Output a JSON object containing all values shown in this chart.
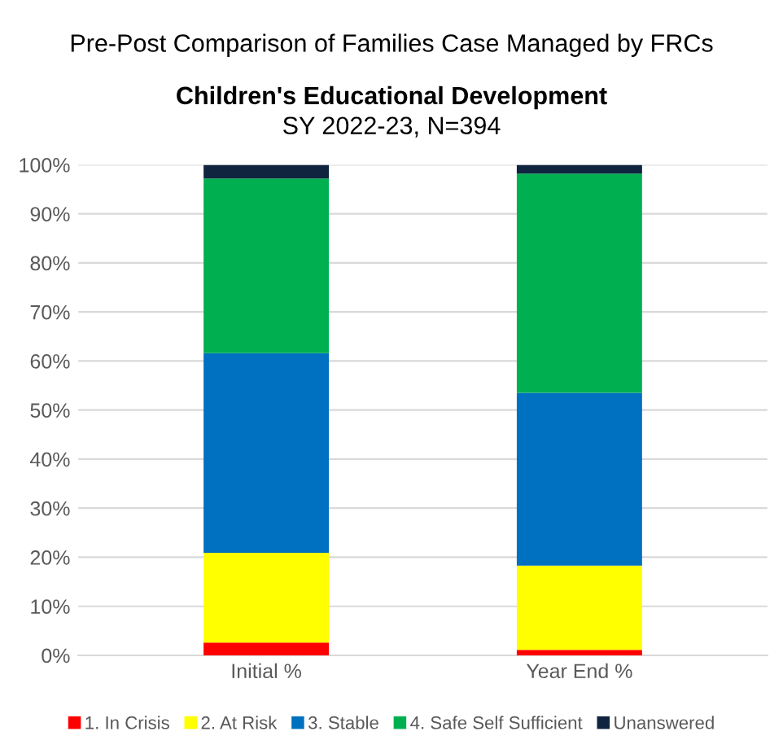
{
  "chart_data": {
    "type": "bar",
    "stacked": true,
    "title": "Pre-Post Comparison of Families Case Managed by FRCs",
    "subtitle": "Children's Educational Development",
    "annotations": [
      "SY 2022-23, N=394"
    ],
    "categories": [
      "Initial %",
      "Year End %"
    ],
    "series": [
      {
        "name": "1. In Crisis",
        "color": "#ff0000",
        "values": [
          2.6,
          1.1
        ]
      },
      {
        "name": "2. At Risk",
        "color": "#ffff00",
        "values": [
          18.3,
          17.2
        ]
      },
      {
        "name": "3. Stable",
        "color": "#0070c0",
        "values": [
          40.7,
          35.2
        ]
      },
      {
        "name": "4. Safe Self Sufficient",
        "color": "#00b050",
        "values": [
          35.6,
          44.7
        ]
      },
      {
        "name": "Unanswered",
        "color": "#10243f",
        "values": [
          2.8,
          1.8
        ]
      }
    ],
    "ylim": [
      0,
      100
    ],
    "yticks": [
      {
        "value": 0,
        "label": "0%"
      },
      {
        "value": 10,
        "label": "10%"
      },
      {
        "value": 20,
        "label": "20%"
      },
      {
        "value": 30,
        "label": "30%"
      },
      {
        "value": 40,
        "label": "40%"
      },
      {
        "value": 50,
        "label": "50%"
      },
      {
        "value": 60,
        "label": "60%"
      },
      {
        "value": 70,
        "label": "70%"
      },
      {
        "value": 80,
        "label": "80%"
      },
      {
        "value": 90,
        "label": "90%"
      },
      {
        "value": 100,
        "label": "100%"
      }
    ],
    "grid": "y",
    "legend": "bottom"
  }
}
